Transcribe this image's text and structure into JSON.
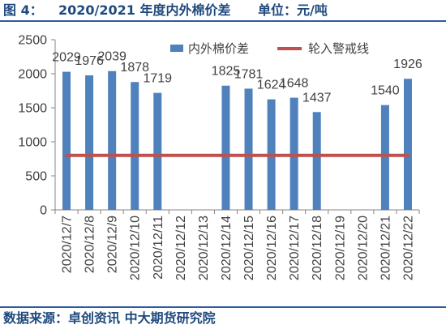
{
  "header": {
    "figure_label": "图 4：",
    "title": "2020/2021 年度内外棉价差",
    "unit": "单位：元/吨"
  },
  "footer": {
    "source": "数据来源：卓创资讯 中大期货研究院"
  },
  "colors": {
    "header_text": "#1f497d",
    "rule": "#2e5c9e",
    "axis": "#868686"
  },
  "chart_data": {
    "type": "bar",
    "categories": [
      "2020/12/7",
      "2020/12/8",
      "2020/12/9",
      "2020/12/10",
      "2020/12/11",
      "2020/12/12",
      "2020/12/13",
      "2020/12/14",
      "2020/12/15",
      "2020/12/16",
      "2020/12/17",
      "2020/12/18",
      "2020/12/19",
      "2020/12/20",
      "2020/12/21",
      "2020/12/22"
    ],
    "series": [
      {
        "name": "内外棉价差",
        "type": "bar",
        "color": "#4f81bd",
        "data_labels": true,
        "values": [
          2029,
          1976,
          2039,
          1878,
          1719,
          null,
          null,
          1825,
          1781,
          1624,
          1648,
          1437,
          null,
          null,
          1540,
          1926
        ]
      },
      {
        "name": "轮入警戒线",
        "type": "line",
        "color": "#c0504d",
        "values": [
          800,
          800,
          800,
          800,
          800,
          800,
          800,
          800,
          800,
          800,
          800,
          800,
          800,
          800,
          800,
          800
        ]
      }
    ],
    "ylim": [
      0,
      2500
    ],
    "yticks": [
      0,
      500,
      1000,
      1500,
      2000,
      2500
    ],
    "grid": false,
    "legend": "top-right"
  }
}
